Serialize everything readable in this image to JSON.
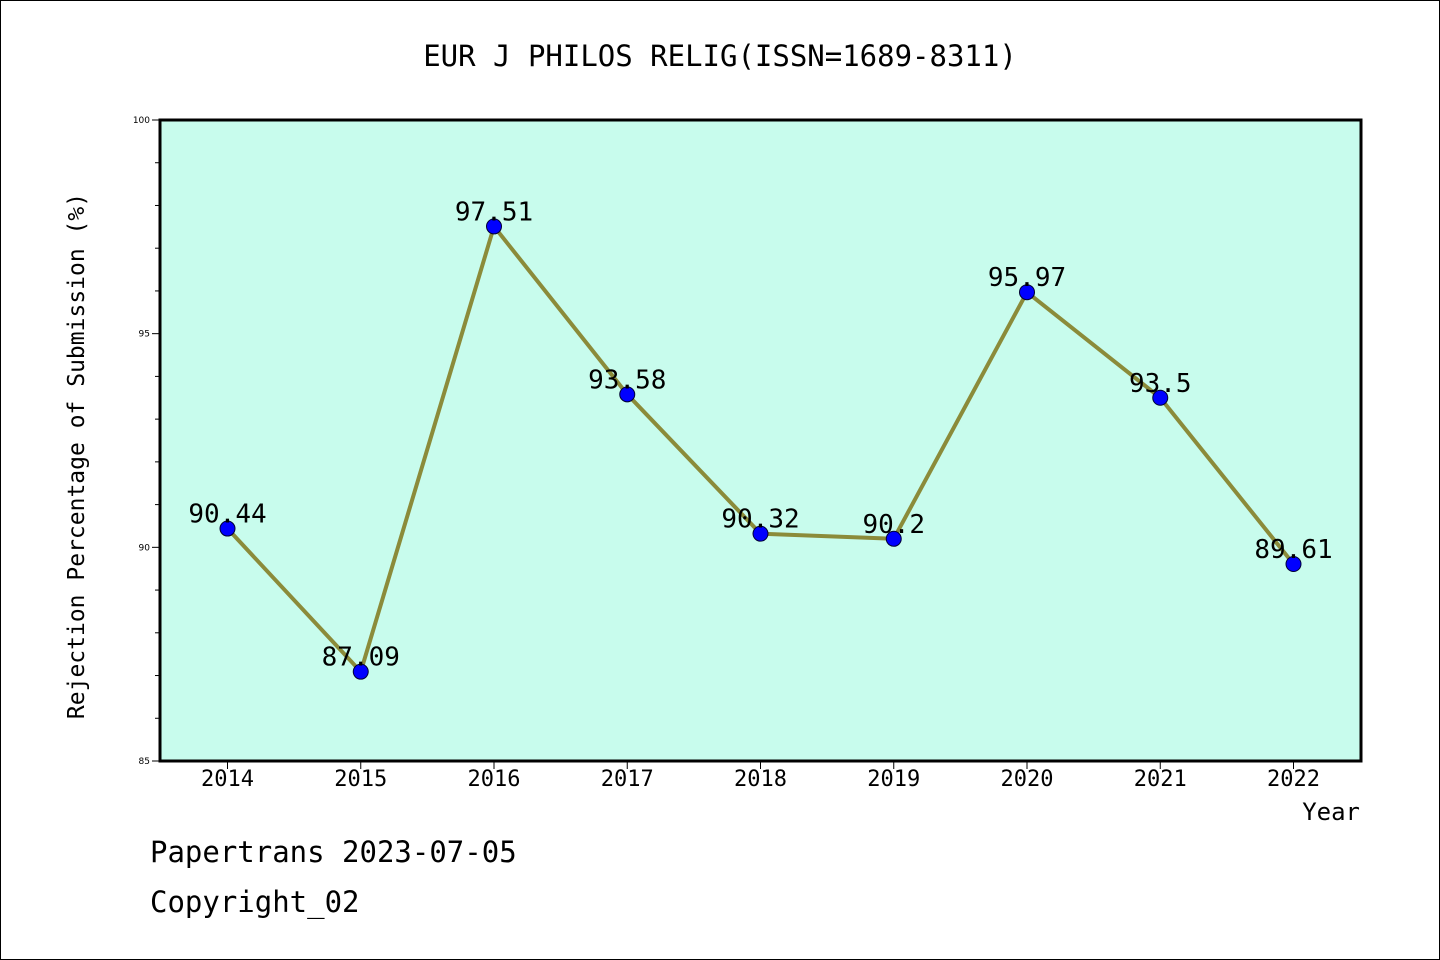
{
  "chart_data": {
    "type": "line",
    "title": "EUR J PHILOS RELIG(ISSN=1689-8311)",
    "xlabel": "Year",
    "ylabel": "Rejection Percentage of Submission (%)",
    "categories": [
      "2014",
      "2015",
      "2016",
      "2017",
      "2018",
      "2019",
      "2020",
      "2021",
      "2022"
    ],
    "series": [
      {
        "values": [
          90.44,
          87.09,
          97.51,
          93.58,
          90.32,
          90.2,
          95.97,
          93.5,
          89.61
        ],
        "labels": [
          "90.44",
          "87.09",
          "97.51",
          "93.58",
          "90.32",
          "90.2",
          "95.97",
          "93.5",
          "89.61"
        ],
        "line_color": "#8b8b3a",
        "marker_color": "#0000ff"
      }
    ],
    "ylim": [
      85,
      100
    ],
    "yticks": [
      "85",
      "90",
      "95",
      "100"
    ],
    "plot_background": "#c8fced",
    "grid": false
  },
  "footer": {
    "line1": "Papertrans 2023-07-05",
    "line2": "Copyright_02"
  }
}
